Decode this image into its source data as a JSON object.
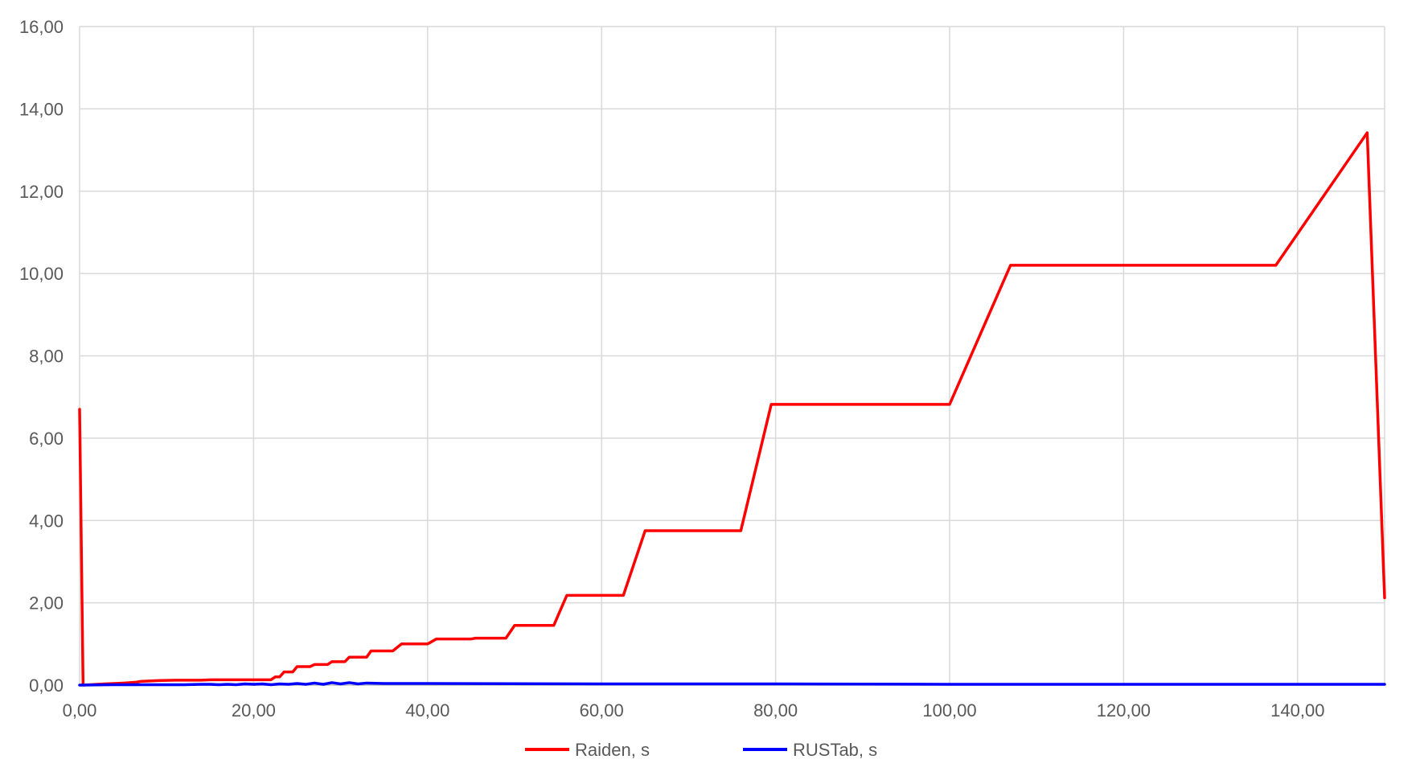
{
  "chart_data": {
    "type": "line",
    "title": "",
    "xlabel": "",
    "ylabel": "",
    "xlim": [
      0,
      150
    ],
    "ylim": [
      0,
      16
    ],
    "x_ticks": [
      "0,00",
      "20,00",
      "40,00",
      "60,00",
      "80,00",
      "100,00",
      "120,00",
      "140,00"
    ],
    "x_tick_values": [
      0,
      20,
      40,
      60,
      80,
      100,
      120,
      140
    ],
    "y_ticks": [
      "0,00",
      "2,00",
      "4,00",
      "6,00",
      "8,00",
      "10,00",
      "12,00",
      "14,00",
      "16,00"
    ],
    "y_tick_values": [
      0,
      2,
      4,
      6,
      8,
      10,
      12,
      14,
      16
    ],
    "grid": "both",
    "legend_position": "bottom",
    "series": [
      {
        "name": "Raiden, s",
        "color": "#ff0000",
        "points": [
          [
            0,
            6.7
          ],
          [
            0.4,
            0.0
          ],
          [
            2,
            0.02
          ],
          [
            5,
            0.05
          ],
          [
            6.5,
            0.07
          ],
          [
            7,
            0.09
          ],
          [
            9,
            0.11
          ],
          [
            11,
            0.12
          ],
          [
            14,
            0.12
          ],
          [
            15,
            0.13
          ],
          [
            18,
            0.13
          ],
          [
            22,
            0.13
          ],
          [
            22.5,
            0.2
          ],
          [
            23,
            0.2
          ],
          [
            23.5,
            0.32
          ],
          [
            24.5,
            0.32
          ],
          [
            25,
            0.45
          ],
          [
            26.5,
            0.45
          ],
          [
            27,
            0.5
          ],
          [
            28.5,
            0.5
          ],
          [
            29,
            0.57
          ],
          [
            30.5,
            0.57
          ],
          [
            31,
            0.68
          ],
          [
            33,
            0.68
          ],
          [
            33.5,
            0.83
          ],
          [
            36,
            0.83
          ],
          [
            37,
            1.0
          ],
          [
            40,
            1.0
          ],
          [
            41,
            1.12
          ],
          [
            45,
            1.12
          ],
          [
            45.5,
            1.14
          ],
          [
            49,
            1.14
          ],
          [
            50,
            1.45
          ],
          [
            54.5,
            1.45
          ],
          [
            56,
            2.18
          ],
          [
            62.5,
            2.18
          ],
          [
            65,
            3.75
          ],
          [
            76,
            3.75
          ],
          [
            79.5,
            6.82
          ],
          [
            100,
            6.82
          ],
          [
            107,
            10.2
          ],
          [
            137.5,
            10.2
          ],
          [
            148,
            13.42
          ],
          [
            150,
            2.12
          ]
        ]
      },
      {
        "name": "RUSTab, s",
        "color": "#0000ff",
        "points": [
          [
            0,
            0.0
          ],
          [
            4,
            0.01
          ],
          [
            8,
            0.01
          ],
          [
            12,
            0.01
          ],
          [
            14,
            0.02
          ],
          [
            15,
            0.02
          ],
          [
            16,
            0.01
          ],
          [
            17,
            0.02
          ],
          [
            18,
            0.01
          ],
          [
            19,
            0.03
          ],
          [
            20,
            0.02
          ],
          [
            21,
            0.03
          ],
          [
            22,
            0.01
          ],
          [
            23,
            0.03
          ],
          [
            24,
            0.02
          ],
          [
            25,
            0.04
          ],
          [
            26,
            0.02
          ],
          [
            27,
            0.05
          ],
          [
            28,
            0.02
          ],
          [
            29,
            0.06
          ],
          [
            30,
            0.03
          ],
          [
            31,
            0.06
          ],
          [
            32,
            0.03
          ],
          [
            33,
            0.05
          ],
          [
            35,
            0.04
          ],
          [
            40,
            0.04
          ],
          [
            60,
            0.03
          ],
          [
            80,
            0.03
          ],
          [
            100,
            0.02
          ],
          [
            120,
            0.02
          ],
          [
            140,
            0.02
          ],
          [
            150,
            0.02
          ]
        ]
      }
    ]
  }
}
